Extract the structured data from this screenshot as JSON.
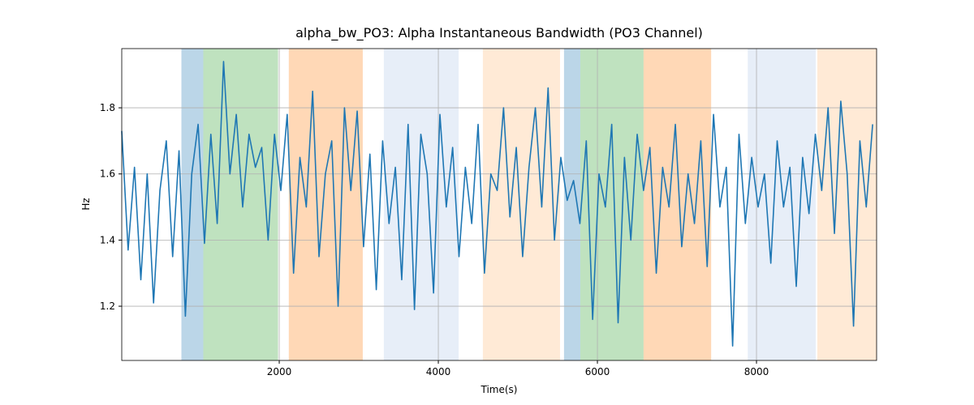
{
  "chart_data": {
    "type": "line",
    "title": "alpha_bw_PO3: Alpha Instantaneous Bandwidth (PO3 Channel)",
    "x_label": "Time(s)",
    "y_label": "Hz",
    "xlim": [
      20,
      9510
    ],
    "ylim": [
      1.036,
      1.979
    ],
    "xticks": [
      2000,
      4000,
      6000,
      8000
    ],
    "yticks": [
      1.2,
      1.4,
      1.6,
      1.8
    ],
    "grid": true,
    "spans": [
      {
        "start": 770,
        "end": 1045,
        "color": "rgba(31,119,180,0.3)"
      },
      {
        "start": 1045,
        "end": 1985,
        "color": "rgba(44,160,44,0.3)"
      },
      {
        "start": 2120,
        "end": 3050,
        "color": "rgba(255,127,14,0.3)"
      },
      {
        "start": 3315,
        "end": 4255,
        "color": "rgba(174,199,232,0.3)"
      },
      {
        "start": 4560,
        "end": 5530,
        "color": "rgba(255,187,120,0.3)"
      },
      {
        "start": 5580,
        "end": 5785,
        "color": "rgba(31,119,180,0.3)"
      },
      {
        "start": 5785,
        "end": 6580,
        "color": "rgba(44,160,44,0.3)"
      },
      {
        "start": 6580,
        "end": 7430,
        "color": "rgba(255,127,14,0.3)"
      },
      {
        "start": 7890,
        "end": 8745,
        "color": "rgba(174,199,232,0.3)"
      },
      {
        "start": 8765,
        "end": 9510,
        "color": "rgba(255,187,120,0.3)"
      }
    ],
    "x": [
      20,
      100,
      180,
      260,
      340,
      420,
      500,
      580,
      660,
      740,
      820,
      900,
      980,
      1060,
      1140,
      1220,
      1300,
      1380,
      1460,
      1540,
      1620,
      1700,
      1780,
      1860,
      1940,
      2020,
      2100,
      2180,
      2260,
      2340,
      2420,
      2500,
      2580,
      2660,
      2740,
      2820,
      2900,
      2980,
      3060,
      3140,
      3220,
      3300,
      3380,
      3460,
      3540,
      3620,
      3700,
      3780,
      3860,
      3940,
      4020,
      4100,
      4180,
      4260,
      4340,
      4420,
      4500,
      4580,
      4660,
      4740,
      4820,
      4900,
      4980,
      5060,
      5140,
      5220,
      5300,
      5380,
      5460,
      5540,
      5620,
      5700,
      5780,
      5860,
      5940,
      6020,
      6100,
      6180,
      6260,
      6340,
      6420,
      6500,
      6580,
      6660,
      6740,
      6820,
      6900,
      6980,
      7060,
      7140,
      7220,
      7300,
      7380,
      7460,
      7540,
      7620,
      7700,
      7780,
      7860,
      7940,
      8020,
      8100,
      8180,
      8260,
      8340,
      8420,
      8500,
      8580,
      8660,
      8740,
      8820,
      8900,
      8980,
      9060,
      9140,
      9220,
      9300,
      9380,
      9460
    ],
    "series": [
      {
        "color": "#1f77b4",
        "values": [
          1.73,
          1.37,
          1.62,
          1.28,
          1.6,
          1.21,
          1.55,
          1.7,
          1.35,
          1.67,
          1.17,
          1.6,
          1.75,
          1.39,
          1.72,
          1.45,
          1.94,
          1.6,
          1.78,
          1.5,
          1.72,
          1.62,
          1.68,
          1.4,
          1.72,
          1.55,
          1.78,
          1.3,
          1.65,
          1.5,
          1.85,
          1.35,
          1.6,
          1.7,
          1.2,
          1.8,
          1.55,
          1.79,
          1.38,
          1.66,
          1.25,
          1.7,
          1.45,
          1.62,
          1.28,
          1.75,
          1.19,
          1.72,
          1.6,
          1.24,
          1.78,
          1.5,
          1.68,
          1.35,
          1.62,
          1.45,
          1.75,
          1.3,
          1.6,
          1.55,
          1.8,
          1.47,
          1.68,
          1.35,
          1.62,
          1.8,
          1.5,
          1.86,
          1.4,
          1.65,
          1.52,
          1.58,
          1.45,
          1.7,
          1.16,
          1.6,
          1.5,
          1.75,
          1.15,
          1.65,
          1.4,
          1.72,
          1.55,
          1.68,
          1.3,
          1.62,
          1.5,
          1.75,
          1.38,
          1.6,
          1.45,
          1.7,
          1.32,
          1.78,
          1.5,
          1.62,
          1.08,
          1.72,
          1.45,
          1.65,
          1.5,
          1.6,
          1.33,
          1.7,
          1.5,
          1.62,
          1.26,
          1.65,
          1.48,
          1.72,
          1.55,
          1.8,
          1.42,
          1.82,
          1.6,
          1.14,
          1.7,
          1.5,
          1.75
        ]
      }
    ]
  }
}
